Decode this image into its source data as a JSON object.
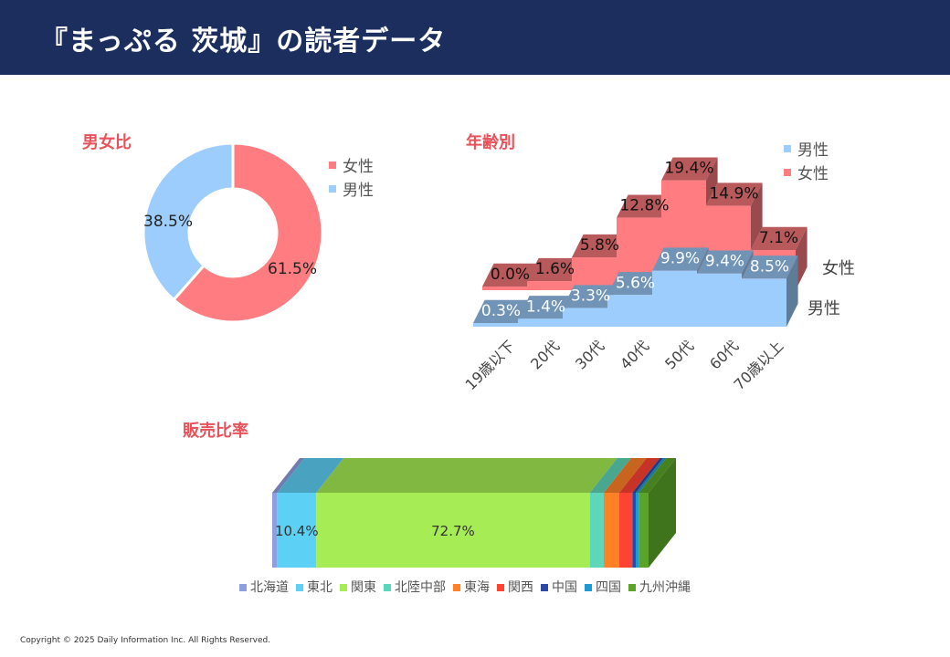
{
  "header": {
    "title": "『まっぷる 茨城』の読者データ"
  },
  "copyright": "Copyright © 2025 Daily Information Inc. All Rights Reserved.",
  "colors": {
    "female": "#ff7c80",
    "male": "#9dcdfd",
    "header_bg": "#1b2e5e",
    "section_title": "#e8525a"
  },
  "chart_data": [
    {
      "type": "pie",
      "title": "男女比",
      "donut": true,
      "legend_position": "right",
      "categories": [
        "女性",
        "男性"
      ],
      "values": [
        61.5,
        38.5
      ],
      "labels": [
        "61.5%",
        "38.5%"
      ]
    },
    {
      "type": "bar",
      "title": "年齢別",
      "style": "3d-stepped",
      "legend_position": "top-right",
      "categories": [
        "19歳以下",
        "20代",
        "30代",
        "40代",
        "50代",
        "60代",
        "70歳以上"
      ],
      "depth_labels": [
        "女性",
        "男性"
      ],
      "series": [
        {
          "name": "男性",
          "values": [
            0.3,
            1.4,
            3.3,
            5.6,
            9.9,
            9.4,
            8.5
          ],
          "labels": [
            "0.3%",
            "1.4%",
            "3.3%",
            "5.6%",
            "9.9%",
            "9.4%",
            "8.5%"
          ]
        },
        {
          "name": "女性",
          "values": [
            0.0,
            1.6,
            5.8,
            12.8,
            19.4,
            14.9,
            7.1
          ],
          "labels": [
            "0.0%",
            "1.6%",
            "5.8%",
            "12.8%",
            "19.4%",
            "14.9%",
            "7.1%"
          ]
        }
      ]
    },
    {
      "type": "bar",
      "title": "販売比率",
      "style": "100%-stacked-3d",
      "legend_position": "bottom",
      "categories": [
        "北海道",
        "東北",
        "関東",
        "北陸中部",
        "東海",
        "関西",
        "中国",
        "四国",
        "九州沖縄"
      ],
      "values": [
        1.3,
        10.4,
        72.7,
        3.7,
        4.1,
        3.5,
        0.9,
        0.8,
        2.6
      ],
      "labels": [
        "",
        "10.4%",
        "72.7%",
        "",
        "",
        "",
        "",
        "",
        ""
      ],
      "colors": [
        "#8e9fe0",
        "#5dd0f5",
        "#a6ec54",
        "#5dd6b9",
        "#ff8126",
        "#ff4332",
        "#2b4aa3",
        "#1b9bd1",
        "#5aa428"
      ]
    }
  ]
}
